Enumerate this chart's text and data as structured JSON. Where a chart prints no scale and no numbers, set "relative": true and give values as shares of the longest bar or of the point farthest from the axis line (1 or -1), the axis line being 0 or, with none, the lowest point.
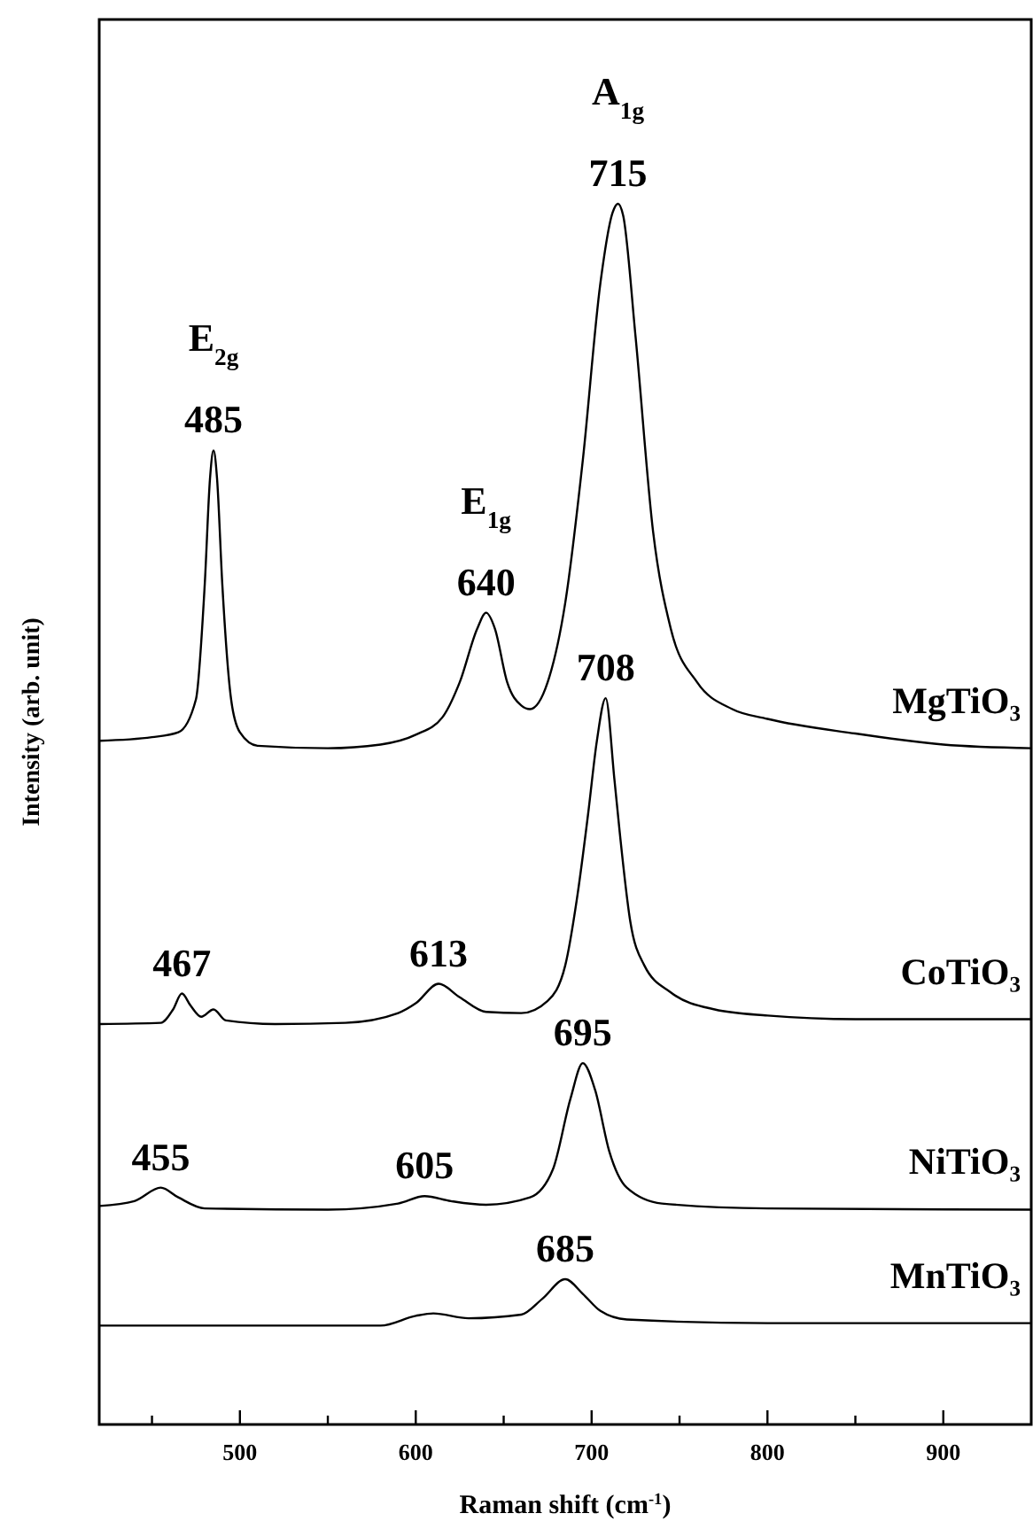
{
  "chart_data": {
    "type": "line",
    "relative": true,
    "xlabel": "Raman shift (cm$^{-1}$)",
    "ylabel": "Intensity (arb. unit)",
    "xlim": [
      420,
      950
    ],
    "xticks": [
      {
        "value": 450,
        "label": null
      },
      500,
      {
        "value": 550,
        "label": null
      },
      600,
      {
        "value": 650,
        "label": null
      },
      700,
      {
        "value": 750,
        "label": null
      },
      800,
      {
        "value": 850,
        "label": null
      },
      900
    ],
    "series": [
      {
        "name": "MgTiO₃",
        "color": "#000000",
        "x": [
          420,
          450,
          465,
          475,
          480,
          483,
          485,
          487,
          490,
          495,
          500,
          510,
          550,
          580,
          600,
          615,
          625,
          635,
          640,
          645,
          652,
          660,
          665,
          675,
          685,
          695,
          705,
          712,
          715,
          718,
          725,
          735,
          745,
          760,
          780,
          800,
          850,
          900,
          950
        ],
        "values": [
          0.56,
          0.563,
          0.567,
          0.594,
          0.688,
          0.775,
          0.798,
          0.775,
          0.688,
          0.594,
          0.567,
          0.556,
          0.554,
          0.557,
          0.565,
          0.579,
          0.608,
          0.652,
          0.665,
          0.652,
          0.608,
          0.589,
          0.586,
          0.608,
          0.673,
          0.79,
          0.935,
          0.993,
          1,
          0.99,
          0.891,
          0.731,
          0.652,
          0.608,
          0.586,
          0.578,
          0.566,
          0.557,
          0.554
        ]
      },
      {
        "name": "CoTiO₃",
        "color": "#000000",
        "x": [
          420,
          455,
          462,
          467,
          472,
          478,
          485,
          492,
          520,
          560,
          590,
          600,
          613,
          625,
          640,
          660,
          675,
          685,
          692,
          698,
          703,
          708,
          713,
          716,
          722,
          730,
          745,
          770,
          800,
          850,
          950
        ],
        "values": [
          0.328,
          0.329,
          0.34,
          0.353,
          0.343,
          0.334,
          0.34,
          0.331,
          0.328,
          0.329,
          0.337,
          0.345,
          0.361,
          0.35,
          0.338,
          0.337,
          0.347,
          0.376,
          0.434,
          0.5,
          0.56,
          0.595,
          0.528,
          0.485,
          0.412,
          0.376,
          0.354,
          0.34,
          0.335,
          0.332,
          0.332
        ]
      },
      {
        "name": "NiTiO₃",
        "color": "#000000",
        "x": [
          420,
          440,
          455,
          465,
          480,
          550,
          590,
          605,
          620,
          640,
          665,
          678,
          688,
          695,
          702,
          710,
          720,
          740,
          800,
          950
        ],
        "values": [
          0.179,
          0.183,
          0.194,
          0.186,
          0.177,
          0.176,
          0.181,
          0.187,
          0.183,
          0.18,
          0.186,
          0.209,
          0.267,
          0.296,
          0.274,
          0.224,
          0.194,
          0.181,
          0.177,
          0.176
        ]
      },
      {
        "name": "MnTiO₃",
        "color": "#000000",
        "x": [
          420,
          580,
          600,
          610,
          630,
          660,
          672,
          685,
          695,
          705,
          720,
          800,
          950
        ],
        "values": [
          0.081,
          0.081,
          0.089,
          0.091,
          0.087,
          0.09,
          0.103,
          0.119,
          0.107,
          0.093,
          0.086,
          0.083,
          0.083
        ]
      }
    ],
    "annotations": [
      {
        "text": "485",
        "x": 485,
        "y": 0.798
      },
      {
        "text": "E$_{2g}$",
        "x": 485,
        "y": 0.798
      },
      {
        "text": "640",
        "x": 640,
        "y": 0.665
      },
      {
        "text": "E$_{1g}$",
        "x": 640,
        "y": 0.665
      },
      {
        "text": "715",
        "x": 715,
        "y": 1
      },
      {
        "text": "A$_{1g}$",
        "x": 715,
        "y": 1
      },
      {
        "text": "708",
        "x": 708,
        "y": 0.595
      },
      {
        "text": "467",
        "x": 467,
        "y": 0.353
      },
      {
        "text": "613",
        "x": 613,
        "y": 0.361
      },
      {
        "text": "695",
        "x": 695,
        "y": 0.296
      },
      {
        "text": "455",
        "x": 455,
        "y": 0.194
      },
      {
        "text": "605",
        "x": 605,
        "y": 0.187
      },
      {
        "text": "685",
        "x": 685,
        "y": 0.119
      }
    ]
  }
}
